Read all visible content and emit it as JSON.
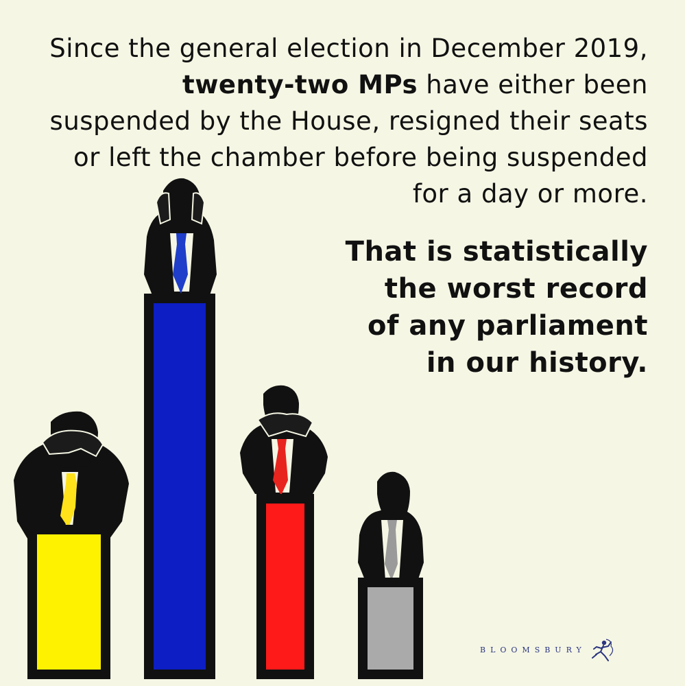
{
  "intro": {
    "line1": "Since the general election in December 2019,",
    "emphasis": "twenty-two MPs",
    "line2_rest": " have either been",
    "line3": "suspended by the House, resigned their seats",
    "line4": "or left the chamber before being suspended",
    "line5": "for a day or more."
  },
  "conclusion": {
    "line1": "That is statistically",
    "line2": "the worst record",
    "line3": "of any parliament",
    "line4": "in our history."
  },
  "figures": [
    {
      "name": "figure-yellow",
      "pose": "hands-over-eyes",
      "tie_color": "#ffe21a",
      "box_color": "#fff200"
    },
    {
      "name": "figure-blue",
      "pose": "hands-over-ears",
      "tie_color": "#1f3ec9",
      "box_color": "#0c1ec4"
    },
    {
      "name": "figure-red",
      "pose": "hands-over-mouth",
      "tie_color": "#e8241f",
      "box_color": "#ff1a1a"
    },
    {
      "name": "figure-grey",
      "pose": "arms-down",
      "tie_color": "#9a9a9a",
      "box_color": "#aaaaaa"
    }
  ],
  "brand": {
    "name": "BLOOMSBURY",
    "logo_icon": "bloomsbury-logo-icon",
    "color": "#2b3580"
  }
}
